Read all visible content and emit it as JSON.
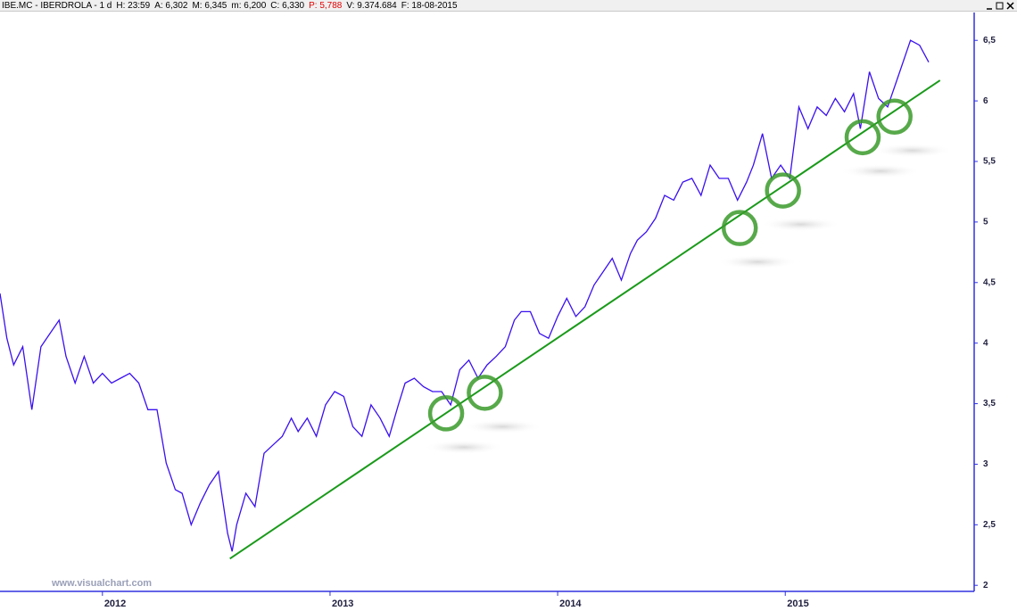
{
  "header": {
    "symbol": "IBE.MC - IBERDROLA - 1 d",
    "fields": [
      "H: 23:59",
      "A: 6,302",
      "M: 6,345",
      "m: 6,200",
      "C: 6,330",
      "P: 5,788",
      "V: 9.374.684",
      "F: 18-08-2015"
    ],
    "highlight_field": 5
  },
  "chart_data": {
    "type": "line",
    "watermark": "www.visualchart.com",
    "xlim": [
      2011.55,
      2015.83
    ],
    "xticks": [
      2012,
      2013,
      2014,
      2015
    ],
    "ylim": [
      1.95,
      6.73
    ],
    "yticks": [
      2,
      {
        "value": 2.5,
        "label": "2,5"
      },
      3,
      {
        "value": 3.5,
        "label": "3,5"
      },
      4,
      {
        "value": 4.5,
        "label": "4,5"
      },
      5,
      {
        "value": 5.5,
        "label": "5,5"
      },
      6,
      {
        "value": 6.5,
        "label": "6,5"
      }
    ],
    "series": [
      {
        "color": "#3a10f0",
        "x": [
          2011.55,
          2011.58,
          2011.61,
          2011.65,
          2011.69,
          2011.73,
          2011.77,
          2011.81,
          2011.84,
          2011.88,
          2011.92,
          2011.96,
          2012.0,
          2012.04,
          2012.08,
          2012.12,
          2012.16,
          2012.2,
          2012.24,
          2012.28,
          2012.32,
          2012.35,
          2012.39,
          2012.43,
          2012.47,
          2012.51,
          2012.55,
          2012.57,
          2012.59,
          2012.63,
          2012.67,
          2012.71,
          2012.75,
          2012.79,
          2012.83,
          2012.86,
          2012.9,
          2012.94,
          2012.98,
          2013.02,
          2013.06,
          2013.1,
          2013.14,
          2013.18,
          2013.22,
          2013.26,
          2013.3,
          2013.33,
          2013.37,
          2013.41,
          2013.45,
          2013.49,
          2013.53,
          2013.57,
          2013.61,
          2013.65,
          2013.69,
          2013.73,
          2013.77,
          2013.81,
          2013.84,
          2013.88,
          2013.92,
          2013.96,
          2014.0,
          2014.04,
          2014.08,
          2014.12,
          2014.16,
          2014.2,
          2014.24,
          2014.28,
          2014.32,
          2014.35,
          2014.39,
          2014.43,
          2014.47,
          2014.51,
          2014.55,
          2014.59,
          2014.63,
          2014.67,
          2014.71,
          2014.75,
          2014.79,
          2014.83,
          2014.86,
          2014.9,
          2014.94,
          2014.98,
          2015.02,
          2015.06,
          2015.1,
          2015.14,
          2015.18,
          2015.22,
          2015.26,
          2015.3,
          2015.33,
          2015.37,
          2015.41,
          2015.45,
          2015.49,
          2015.53,
          2015.55,
          2015.59,
          2015.63
        ],
        "values": [
          4.41,
          4.04,
          3.82,
          3.97,
          3.45,
          3.97,
          4.08,
          4.19,
          3.89,
          3.67,
          3.89,
          3.67,
          3.75,
          3.67,
          3.71,
          3.75,
          3.67,
          3.45,
          3.45,
          3.01,
          2.79,
          2.76,
          2.5,
          2.68,
          2.83,
          2.94,
          2.43,
          2.28,
          2.5,
          2.76,
          2.65,
          3.09,
          3.16,
          3.23,
          3.38,
          3.27,
          3.38,
          3.23,
          3.49,
          3.6,
          3.56,
          3.31,
          3.23,
          3.49,
          3.38,
          3.23,
          3.49,
          3.67,
          3.71,
          3.64,
          3.6,
          3.6,
          3.49,
          3.78,
          3.86,
          3.71,
          3.82,
          3.89,
          3.97,
          4.19,
          4.26,
          4.26,
          4.08,
          4.04,
          4.22,
          4.37,
          4.22,
          4.3,
          4.48,
          4.59,
          4.7,
          4.52,
          4.74,
          4.85,
          4.92,
          5.03,
          5.22,
          5.18,
          5.33,
          5.36,
          5.22,
          5.47,
          5.36,
          5.36,
          5.18,
          5.33,
          5.47,
          5.73,
          5.36,
          5.47,
          5.36,
          5.95,
          5.77,
          5.95,
          5.88,
          6.02,
          5.91,
          6.06,
          5.77,
          6.24,
          6.02,
          5.95,
          6.17,
          6.39,
          6.5,
          6.46,
          6.32
        ]
      }
    ],
    "trendline": {
      "color": "#1a9a1a",
      "x": [
        2012.56,
        2015.68
      ],
      "values": [
        2.22,
        6.17
      ]
    },
    "highlights": {
      "color": "#3a9a2a",
      "x": [
        2013.51,
        2013.68,
        2014.8,
        2014.99,
        2015.34,
        2015.48
      ],
      "y": [
        3.42,
        3.59,
        4.95,
        5.26,
        5.7,
        5.87
      ]
    }
  }
}
